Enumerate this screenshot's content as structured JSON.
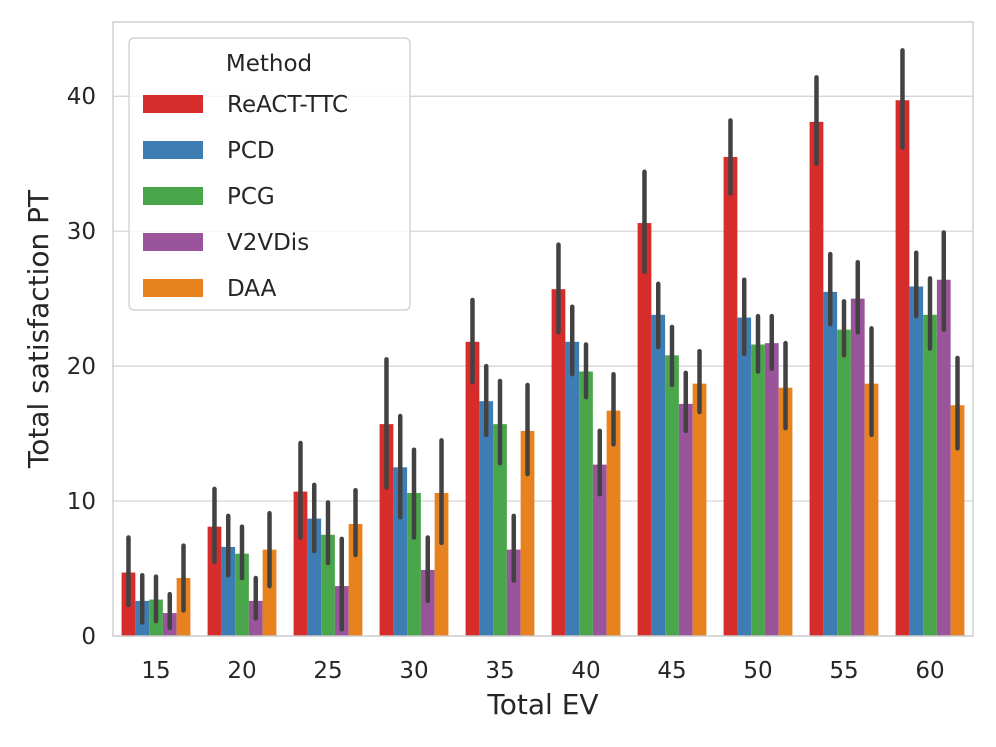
{
  "chart_data": {
    "type": "bar",
    "xlabel": "Total EV",
    "ylabel": "Total satisfaction PT",
    "ylim": [
      0,
      45.5
    ],
    "yticks": [
      0,
      10,
      20,
      30,
      40
    ],
    "grid": true,
    "legend_title": "Method",
    "legend_position": "top-left",
    "categories": [
      "15",
      "20",
      "25",
      "30",
      "35",
      "40",
      "45",
      "50",
      "55",
      "60"
    ],
    "series": [
      {
        "name": "ReACT-TTC",
        "color": "#d62c2c",
        "values": [
          4.7,
          8.1,
          10.7,
          15.7,
          21.8,
          25.7,
          30.6,
          35.5,
          38.1,
          39.7
        ],
        "ci_low": [
          2.3,
          5.5,
          7.3,
          11.0,
          18.8,
          22.5,
          27.0,
          32.8,
          35.0,
          36.2
        ],
        "ci_high": [
          7.3,
          10.9,
          14.3,
          20.5,
          24.9,
          29.0,
          34.4,
          38.2,
          41.4,
          43.4
        ]
      },
      {
        "name": "PCD",
        "color": "#3e7db3",
        "values": [
          2.6,
          6.6,
          8.7,
          12.5,
          17.4,
          21.8,
          23.8,
          23.6,
          25.5,
          25.9
        ],
        "ci_low": [
          1.0,
          4.5,
          6.3,
          8.8,
          14.9,
          19.4,
          21.4,
          20.9,
          23.1,
          23.7
        ],
        "ci_high": [
          4.5,
          8.9,
          11.2,
          16.3,
          20.0,
          24.4,
          26.1,
          26.4,
          28.3,
          28.4
        ]
      },
      {
        "name": "PCG",
        "color": "#4aa64a",
        "values": [
          2.7,
          6.1,
          7.5,
          10.6,
          15.7,
          19.6,
          20.8,
          21.6,
          22.7,
          23.8
        ],
        "ci_low": [
          1.1,
          4.3,
          5.4,
          7.3,
          12.8,
          17.7,
          18.6,
          19.6,
          20.8,
          21.3
        ],
        "ci_high": [
          4.4,
          8.1,
          9.9,
          13.8,
          18.9,
          21.6,
          22.9,
          23.7,
          24.8,
          26.5
        ]
      },
      {
        "name": "V2VDis",
        "color": "#9a549c",
        "values": [
          1.7,
          2.6,
          3.7,
          4.9,
          6.4,
          12.7,
          17.2,
          21.7,
          25.0,
          26.4
        ],
        "ci_low": [
          0.6,
          1.3,
          0.5,
          2.6,
          4.1,
          10.5,
          15.2,
          19.8,
          22.5,
          22.7
        ],
        "ci_high": [
          3.1,
          4.3,
          7.2,
          7.3,
          8.9,
          15.2,
          19.5,
          23.7,
          27.7,
          29.9
        ]
      },
      {
        "name": "DAA",
        "color": "#e8821f",
        "values": [
          4.3,
          6.4,
          8.3,
          10.6,
          15.2,
          16.7,
          18.7,
          18.4,
          18.7,
          17.1
        ],
        "ci_low": [
          1.9,
          3.7,
          6.0,
          6.9,
          12.0,
          14.2,
          16.6,
          15.4,
          14.9,
          13.9
        ],
        "ci_high": [
          6.7,
          9.1,
          10.8,
          14.5,
          18.6,
          19.4,
          21.1,
          21.7,
          22.8,
          20.6
        ]
      }
    ]
  }
}
